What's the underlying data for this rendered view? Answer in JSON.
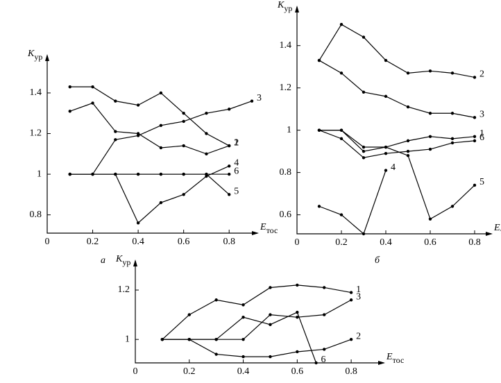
{
  "chart_data": [
    {
      "type": "line",
      "label": "а",
      "y_label": {
        "main": "K",
        "sub": "ур"
      },
      "x_label": {
        "main": "E",
        "sub": "тос"
      },
      "x": [
        0.1,
        0.2,
        0.3,
        0.4,
        0.5,
        0.6,
        0.7,
        0.8
      ],
      "series": [
        {
          "name": "1",
          "color": "#000000",
          "values": [
            1.31,
            1.35,
            1.21,
            1.2,
            1.13,
            1.14,
            1.1,
            1.14
          ]
        },
        {
          "name": "2",
          "color": "#000000",
          "values": [
            1.43,
            1.43,
            1.36,
            1.34,
            1.4,
            1.3,
            1.2,
            1.14
          ]
        },
        {
          "name": "3",
          "color": "#000000",
          "x": [
            0.1,
            0.2,
            0.3,
            0.4,
            0.5,
            0.6,
            0.7,
            0.8,
            0.9
          ],
          "values": [
            1.0,
            1.0,
            1.17,
            1.19,
            1.24,
            1.26,
            1.3,
            1.32,
            1.36
          ]
        },
        {
          "name": "4",
          "color": "#000000",
          "values": [
            1.0,
            1.0,
            1.0,
            0.76,
            0.86,
            0.9,
            0.99,
            1.04
          ]
        },
        {
          "name": "5",
          "color": "#000000",
          "values": [
            1.0,
            1.0,
            1.0,
            1.0,
            1.0,
            1.0,
            1.0,
            0.9
          ]
        },
        {
          "name": "6",
          "color": "#000000",
          "values": [
            1.0,
            1.0,
            1.0,
            1.0,
            1.0,
            1.0,
            1.0,
            1.0
          ]
        }
      ],
      "xlim": [
        0,
        0.9
      ],
      "ylim": [
        0.71,
        1.55
      ],
      "xticks": [
        0,
        0.2,
        0.4,
        0.6,
        0.8
      ],
      "yticks": [
        0.8,
        1,
        1.2,
        1.4
      ]
    },
    {
      "type": "line",
      "label": "б",
      "y_label": {
        "main": "K",
        "sub": "ур"
      },
      "x_label": {
        "main": "E",
        "sub": "тос"
      },
      "x": [
        0.1,
        0.2,
        0.3,
        0.4,
        0.5,
        0.6,
        0.7,
        0.8
      ],
      "series": [
        {
          "name": "1",
          "color": "#000000",
          "values": [
            1.0,
            1.0,
            0.92,
            0.92,
            0.95,
            0.97,
            0.96,
            0.97
          ]
        },
        {
          "name": "2",
          "color": "#000000",
          "values": [
            1.33,
            1.5,
            1.44,
            1.33,
            1.27,
            1.28,
            1.27,
            1.25
          ]
        },
        {
          "name": "3",
          "color": "#000000",
          "values": [
            1.33,
            1.27,
            1.18,
            1.16,
            1.11,
            1.08,
            1.08,
            1.06
          ]
        },
        {
          "name": "4",
          "color": "#000000",
          "values": [
            0.64,
            0.6,
            0.51,
            0.81,
            null,
            null,
            null,
            null
          ]
        },
        {
          "name": "5",
          "color": "#000000",
          "values": [
            1.0,
            1.0,
            0.9,
            0.92,
            0.88,
            0.58,
            0.64,
            0.74
          ]
        },
        {
          "name": "6",
          "color": "#000000",
          "values": [
            1.0,
            0.96,
            0.87,
            0.89,
            0.9,
            0.91,
            0.94,
            0.95
          ]
        }
      ],
      "xlim": [
        0,
        0.85
      ],
      "ylim": [
        0.51,
        1.55
      ],
      "xticks": [
        0,
        0.2,
        0.4,
        0.6,
        0.8
      ],
      "yticks": [
        0.6,
        0.8,
        1,
        1.2,
        1.4
      ]
    },
    {
      "type": "line",
      "y_label": {
        "main": "K",
        "sub": "ур"
      },
      "x_label": {
        "main": "E",
        "sub": "тос"
      },
      "x": [
        0.1,
        0.2,
        0.3,
        0.4,
        0.5,
        0.6,
        0.7,
        0.8
      ],
      "series": [
        {
          "name": "1",
          "color": "#000000",
          "values": [
            1.0,
            1.1,
            1.16,
            1.14,
            1.21,
            1.22,
            1.21,
            1.19
          ]
        },
        {
          "name": "2",
          "color": "#000000",
          "values": [
            1.0,
            1.0,
            0.94,
            0.93,
            0.93,
            0.95,
            0.96,
            1.0
          ]
        },
        {
          "name": "3",
          "color": "#000000",
          "values": [
            1.0,
            1.0,
            1.0,
            1.0,
            1.1,
            1.09,
            1.1,
            1.16
          ]
        },
        {
          "name": "6",
          "color": "#000000",
          "x": [
            0.1,
            0.2,
            0.3,
            0.4,
            0.5,
            0.6,
            0.67
          ],
          "values": [
            1.0,
            1.0,
            1.0,
            1.09,
            1.06,
            1.11,
            0.905
          ]
        }
      ],
      "xlim": [
        0,
        0.9
      ],
      "ylim": [
        0.905,
        1.29
      ],
      "xticks": [
        0,
        0.2,
        0.4,
        0.6,
        0.8
      ],
      "yticks": [
        1,
        1.2
      ]
    }
  ]
}
